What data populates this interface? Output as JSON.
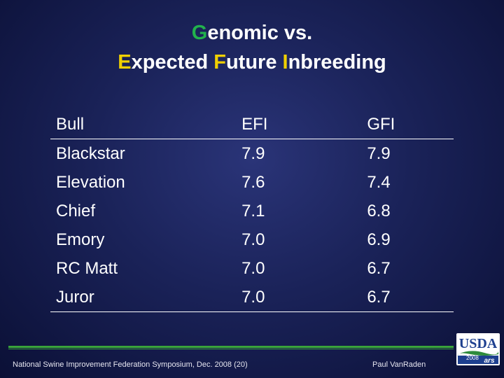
{
  "title": {
    "line1_initial": "G",
    "line1_rest": "enomic vs.",
    "line2_e_initial": "E",
    "line2_e_rest": "xpected ",
    "line2_f_initial": "F",
    "line2_f_rest": "uture ",
    "line2_i_initial": "I",
    "line2_i_rest": "nbreeding"
  },
  "table": {
    "headers": [
      "Bull",
      "EFI",
      "GFI"
    ],
    "rows": [
      [
        "Blackstar",
        "7.9",
        "7.9"
      ],
      [
        "Elevation",
        "7.6",
        "7.4"
      ],
      [
        "Chief",
        "7.1",
        "6.8"
      ],
      [
        "Emory",
        "7.0",
        "6.9"
      ],
      [
        "RC Matt",
        "7.0",
        "6.7"
      ],
      [
        "Juror",
        "7.0",
        "6.7"
      ]
    ]
  },
  "footer": {
    "left": "National Swine Improvement Federation Symposium, Dec. 2008 (20)",
    "right": "Paul VanRaden",
    "logo_text": "USDA",
    "logo_year": "2008",
    "logo_mark": "ars"
  },
  "colors": {
    "title_text": "#ffffff",
    "initial_green": "#22b24c",
    "initial_yellow": "#f0d000",
    "rule_green": "#3aa53a",
    "usda_blue": "#1d3f8f"
  }
}
